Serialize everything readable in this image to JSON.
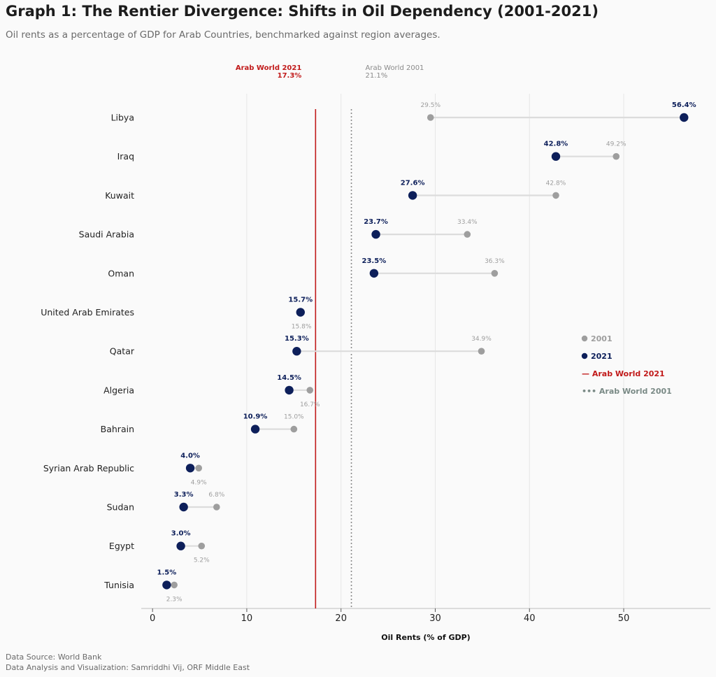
{
  "title": "Graph 1: The Rentier Divergence: Shifts in Oil Dependency (2001-2021)",
  "subtitle": "Oil rents as a percentage of GDP for Arab Countries, benchmarked against region averages.",
  "source_line1": "Data Source: World Bank",
  "source_line2": "Data Analysis and Visualization: Samriddhi Vij, ORF Middle East",
  "colors": {
    "y2001": "#9e9e9e",
    "y2021": "#0d1f5a",
    "arab2021": "#c11a1a",
    "arab2001": "#8a8a8a",
    "connector": "#dcdcdc",
    "grid": "#e6e6e6"
  },
  "chart_data": {
    "type": "dumbbell",
    "xlabel": "Oil Rents (% of GDP)",
    "xlim": [
      -1.2,
      59.2
    ],
    "xticks": [
      0,
      10,
      20,
      30,
      40,
      50
    ],
    "categories": [
      "Libya",
      "Iraq",
      "Kuwait",
      "Saudi Arabia",
      "Oman",
      "United Arab Emirates",
      "Qatar",
      "Algeria",
      "Bahrain",
      "Syrian Arab Republic",
      "Sudan",
      "Egypt",
      "Tunisia"
    ],
    "series": [
      {
        "name": "2001",
        "values": [
          29.5,
          49.2,
          42.8,
          33.4,
          36.3,
          15.8,
          34.9,
          16.7,
          15.0,
          4.9,
          6.8,
          5.2,
          2.3
        ],
        "labels": [
          "29.5%",
          "49.2%",
          "42.8%",
          "33.4%",
          "36.3%",
          "15.8%",
          "34.9%",
          "16.7%",
          "15.0%",
          "4.9%",
          "6.8%",
          "5.2%",
          "2.3%"
        ]
      },
      {
        "name": "2021",
        "values": [
          56.4,
          42.8,
          27.6,
          23.7,
          23.5,
          15.7,
          15.3,
          14.5,
          10.9,
          4.0,
          3.3,
          3.0,
          1.5
        ],
        "labels": [
          "56.4%",
          "42.8%",
          "27.6%",
          "23.7%",
          "23.5%",
          "15.7%",
          "15.3%",
          "14.5%",
          "10.9%",
          "4.0%",
          "3.3%",
          "3.0%",
          "1.5%"
        ]
      }
    ],
    "reference_lines": [
      {
        "name": "Arab World 2021",
        "value": 17.3,
        "label_line1": "Arab World 2021",
        "label_line2": "17.3%"
      },
      {
        "name": "Arab World 2001",
        "value": 21.1,
        "label_line1": "Arab World 2001",
        "label_line2": "21.1%"
      }
    ],
    "legend": {
      "placement": "right",
      "entries": [
        "2001",
        "2021",
        "— Arab World 2021",
        "••• Arab World 2001"
      ]
    }
  }
}
